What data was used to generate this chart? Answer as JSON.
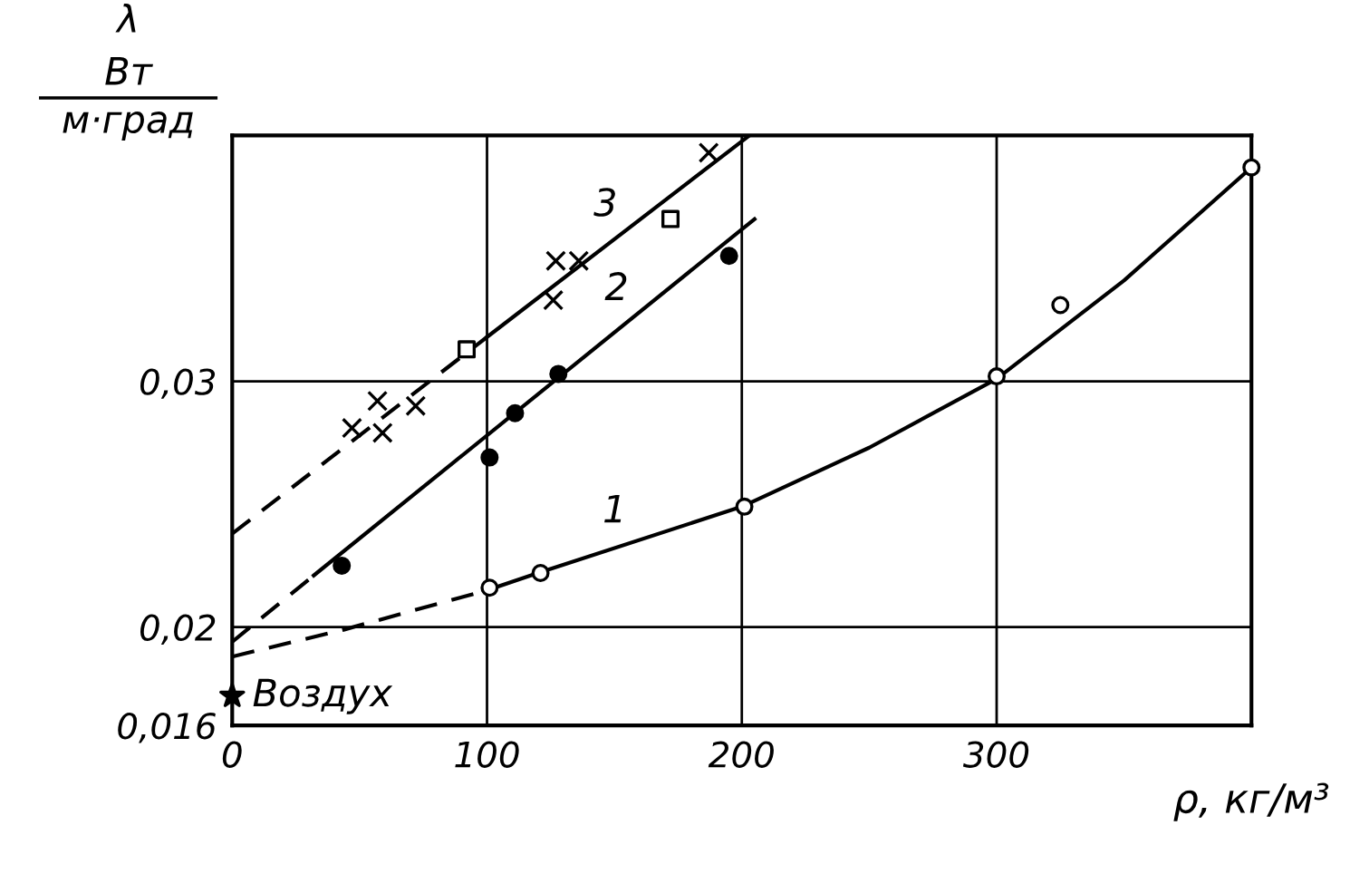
{
  "chart_data": {
    "type": "scatter",
    "xlabel": "ρ, кг/м³",
    "ylabel": "λ\nВт\nм·град",
    "xlim": [
      0,
      400
    ],
    "ylim": [
      0.016,
      0.04
    ],
    "xticks": [
      0,
      100,
      200,
      300
    ],
    "yticks": [
      {
        "value": 0.016,
        "label": "0,016"
      },
      {
        "value": 0.02,
        "label": "0,02"
      },
      {
        "value": 0.03,
        "label": "0,03"
      }
    ],
    "grid": true,
    "legend": false,
    "series": [
      {
        "type": "line",
        "line_style": "dashed",
        "marker": "none",
        "color": "#000000",
        "x": [
          0,
          44,
          100
        ],
        "values": [
          0.0188,
          0.0199,
          0.0215
        ]
      },
      {
        "type": "line",
        "name": "1",
        "line_style": "solid",
        "marker": "none",
        "color": "#000000",
        "x": [
          100,
          120,
          200,
          250,
          300,
          350,
          400
        ],
        "values": [
          0.0215,
          0.0222,
          0.0249,
          0.0273,
          0.0301,
          0.0341,
          0.0387
        ]
      },
      {
        "type": "line",
        "line_style": "dashed",
        "marker": "none",
        "color": "#000000",
        "x": [
          0,
          32
        ],
        "values": [
          0.0194,
          0.0221
        ]
      },
      {
        "type": "line",
        "name": "2",
        "line_style": "solid",
        "marker": "none",
        "color": "#000000",
        "x": [
          32,
          205
        ],
        "values": [
          0.0221,
          0.0366
        ]
      },
      {
        "type": "line",
        "line_style": "dashed",
        "marker": "none",
        "color": "#000000",
        "x": [
          0,
          100
        ],
        "values": [
          0.0238,
          0.0318
        ]
      },
      {
        "type": "line",
        "name": "3",
        "line_style": "solid",
        "marker": "none",
        "color": "#000000",
        "x": [
          100,
          203
        ],
        "values": [
          0.0318,
          0.04
        ]
      },
      {
        "marker": "circle",
        "color": "#ffffff",
        "x": [
          101,
          121,
          201,
          300,
          325,
          400
        ],
        "values": [
          0.0216,
          0.0222,
          0.0249,
          0.0302,
          0.0331,
          0.0387
        ]
      },
      {
        "marker": "circle",
        "color": "#000000",
        "x": [
          43,
          101,
          111,
          128,
          195
        ],
        "values": [
          0.0225,
          0.0269,
          0.0287,
          0.0303,
          0.0351
        ]
      },
      {
        "marker": "cross",
        "color": "#000000",
        "x": [
          47,
          57,
          59,
          72,
          126,
          127,
          136,
          187
        ],
        "values": [
          0.0281,
          0.0292,
          0.0279,
          0.029,
          0.0333,
          0.0349,
          0.0349,
          0.0393
        ]
      },
      {
        "marker": "square",
        "color": "#ffffff",
        "x": [
          92,
          172
        ],
        "values": [
          0.0313,
          0.0366
        ]
      },
      {
        "marker": "star",
        "color": "#000000",
        "x": [
          0
        ],
        "values": [
          0.0172
        ]
      }
    ],
    "annotations": [
      {
        "text": "Воздух",
        "x": 0,
        "y": 0.0172
      }
    ]
  }
}
